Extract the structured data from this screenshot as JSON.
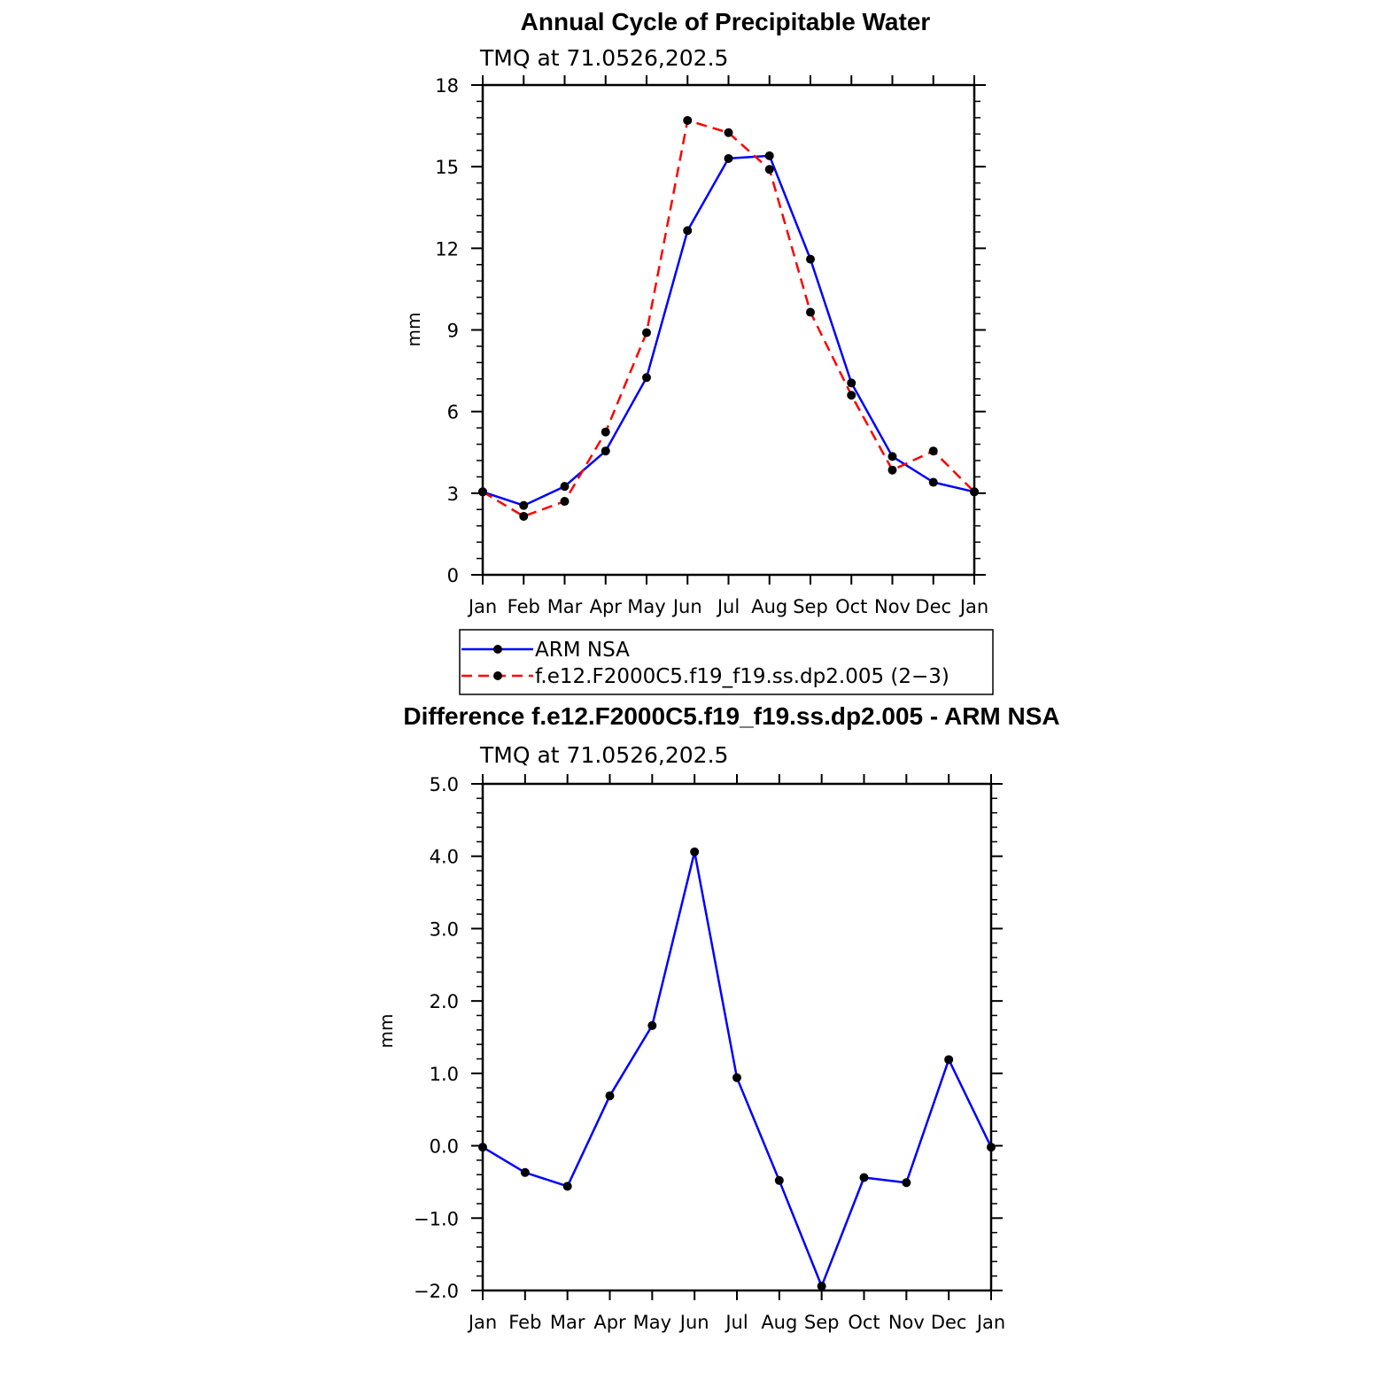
{
  "chart_data": [
    {
      "type": "line",
      "title": "Annual Cycle of Precipitable Water",
      "subtitle": "TMQ at 71.0526,202.5",
      "xlabel": "",
      "ylabel": "mm",
      "categories": [
        "Jan",
        "Feb",
        "Mar",
        "Apr",
        "May",
        "Jun",
        "Jul",
        "Aug",
        "Sep",
        "Oct",
        "Nov",
        "Dec",
        "Jan"
      ],
      "ylim": [
        0,
        18
      ],
      "yticks": [
        0,
        3,
        6,
        9,
        12,
        15,
        18
      ],
      "ytick_labels": [
        "0",
        "3",
        "6",
        "9",
        "12",
        "15",
        "18"
      ],
      "series": [
        {
          "name": "ARM NSA",
          "color": "#0000ff",
          "style": "solid",
          "values": [
            3.05,
            2.55,
            3.25,
            4.55,
            7.25,
            12.65,
            15.3,
            15.4,
            11.6,
            7.05,
            4.35,
            3.4,
            3.05
          ]
        },
        {
          "name": "f.e12.F2000C5.f19_f19.ss.dp2.005 (2−3)",
          "color": "#ff0000",
          "style": "dashed",
          "values": [
            3.05,
            2.15,
            2.7,
            5.25,
            8.9,
            16.7,
            16.25,
            14.9,
            9.65,
            6.6,
            3.85,
            4.55,
            3.05
          ]
        }
      ],
      "legend": "below"
    },
    {
      "type": "line",
      "title": "Difference f.e12.F2000C5.f19_f19.ss.dp2.005 - ARM NSA",
      "subtitle": "TMQ at 71.0526,202.5",
      "xlabel": "",
      "ylabel": "mm",
      "categories": [
        "Jan",
        "Feb",
        "Mar",
        "Apr",
        "May",
        "Jun",
        "Jul",
        "Aug",
        "Sep",
        "Oct",
        "Nov",
        "Dec",
        "Jan"
      ],
      "ylim": [
        -2.0,
        5.0
      ],
      "yticks": [
        -2,
        -1,
        0,
        1,
        2,
        3,
        4,
        5
      ],
      "ytick_labels": [
        "−2.0",
        "−1.0",
        "0.0",
        "1.0",
        "2.0",
        "3.0",
        "4.0",
        "5.0"
      ],
      "series": [
        {
          "color": "#0000ff",
          "style": "solid",
          "values": [
            -0.02,
            -0.37,
            -0.56,
            0.69,
            1.66,
            4.06,
            0.94,
            -0.48,
            -1.94,
            -0.44,
            -0.51,
            1.19,
            -0.02
          ]
        }
      ]
    }
  ]
}
